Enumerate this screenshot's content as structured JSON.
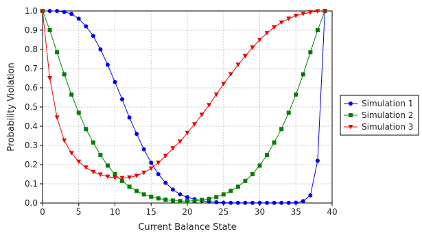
{
  "chart_data": {
    "type": "line",
    "title": "",
    "xlabel": "Current Balance State",
    "ylabel": "Probability Violation",
    "xlim": [
      0,
      40
    ],
    "ylim": [
      0,
      1.0
    ],
    "xticks": [
      0,
      5,
      10,
      15,
      20,
      25,
      30,
      35,
      40
    ],
    "yticks": [
      0.0,
      0.1,
      0.2,
      0.3,
      0.4,
      0.5,
      0.6,
      0.7,
      0.8,
      0.9,
      1.0
    ],
    "xtick_labels": [
      "0",
      "5",
      "10",
      "15",
      "20",
      "25",
      "30",
      "35",
      "40"
    ],
    "ytick_labels": [
      "0.0",
      "0.1",
      "0.2",
      "0.3",
      "0.4",
      "0.5",
      "0.6",
      "0.7",
      "0.8",
      "0.9",
      "1.0"
    ],
    "grid": true,
    "legend_position": "right",
    "x": [
      0,
      1,
      2,
      3,
      4,
      5,
      6,
      7,
      8,
      9,
      10,
      11,
      12,
      13,
      14,
      15,
      16,
      17,
      18,
      19,
      20,
      21,
      22,
      23,
      24,
      25,
      26,
      27,
      28,
      29,
      30,
      31,
      32,
      33,
      34,
      35,
      36,
      37,
      38,
      39
    ],
    "series": [
      {
        "name": "Simulation 1",
        "color": "#0000ee",
        "marker": "circle",
        "values": [
          1.0,
          1.0,
          1.0,
          0.995,
          0.985,
          0.96,
          0.92,
          0.87,
          0.8,
          0.72,
          0.63,
          0.54,
          0.445,
          0.36,
          0.28,
          0.21,
          0.15,
          0.105,
          0.07,
          0.045,
          0.03,
          0.02,
          0.012,
          0.007,
          0.004,
          0.002,
          0.001,
          0.001,
          0.001,
          0.001,
          0.001,
          0.001,
          0.001,
          0.001,
          0.001,
          0.002,
          0.01,
          0.04,
          0.22,
          1.0
        ]
      },
      {
        "name": "Simulation 2",
        "color": "#008000",
        "marker": "square",
        "values": [
          1.0,
          0.9,
          0.785,
          0.67,
          0.565,
          0.47,
          0.385,
          0.315,
          0.25,
          0.195,
          0.15,
          0.115,
          0.085,
          0.063,
          0.045,
          0.033,
          0.024,
          0.017,
          0.013,
          0.01,
          0.01,
          0.012,
          0.016,
          0.022,
          0.031,
          0.045,
          0.063,
          0.085,
          0.115,
          0.15,
          0.195,
          0.25,
          0.315,
          0.385,
          0.47,
          0.565,
          0.67,
          0.785,
          0.9,
          1.0
        ]
      },
      {
        "name": "Simulation 3",
        "color": "#ee0000",
        "marker": "triangle-down",
        "values": [
          1.0,
          0.65,
          0.445,
          0.325,
          0.26,
          0.215,
          0.185,
          0.162,
          0.148,
          0.137,
          0.131,
          0.13,
          0.133,
          0.142,
          0.158,
          0.18,
          0.21,
          0.245,
          0.285,
          0.32,
          0.365,
          0.41,
          0.46,
          0.51,
          0.565,
          0.62,
          0.67,
          0.72,
          0.765,
          0.81,
          0.85,
          0.885,
          0.915,
          0.94,
          0.96,
          0.975,
          0.985,
          0.993,
          0.998,
          1.0
        ]
      }
    ]
  }
}
